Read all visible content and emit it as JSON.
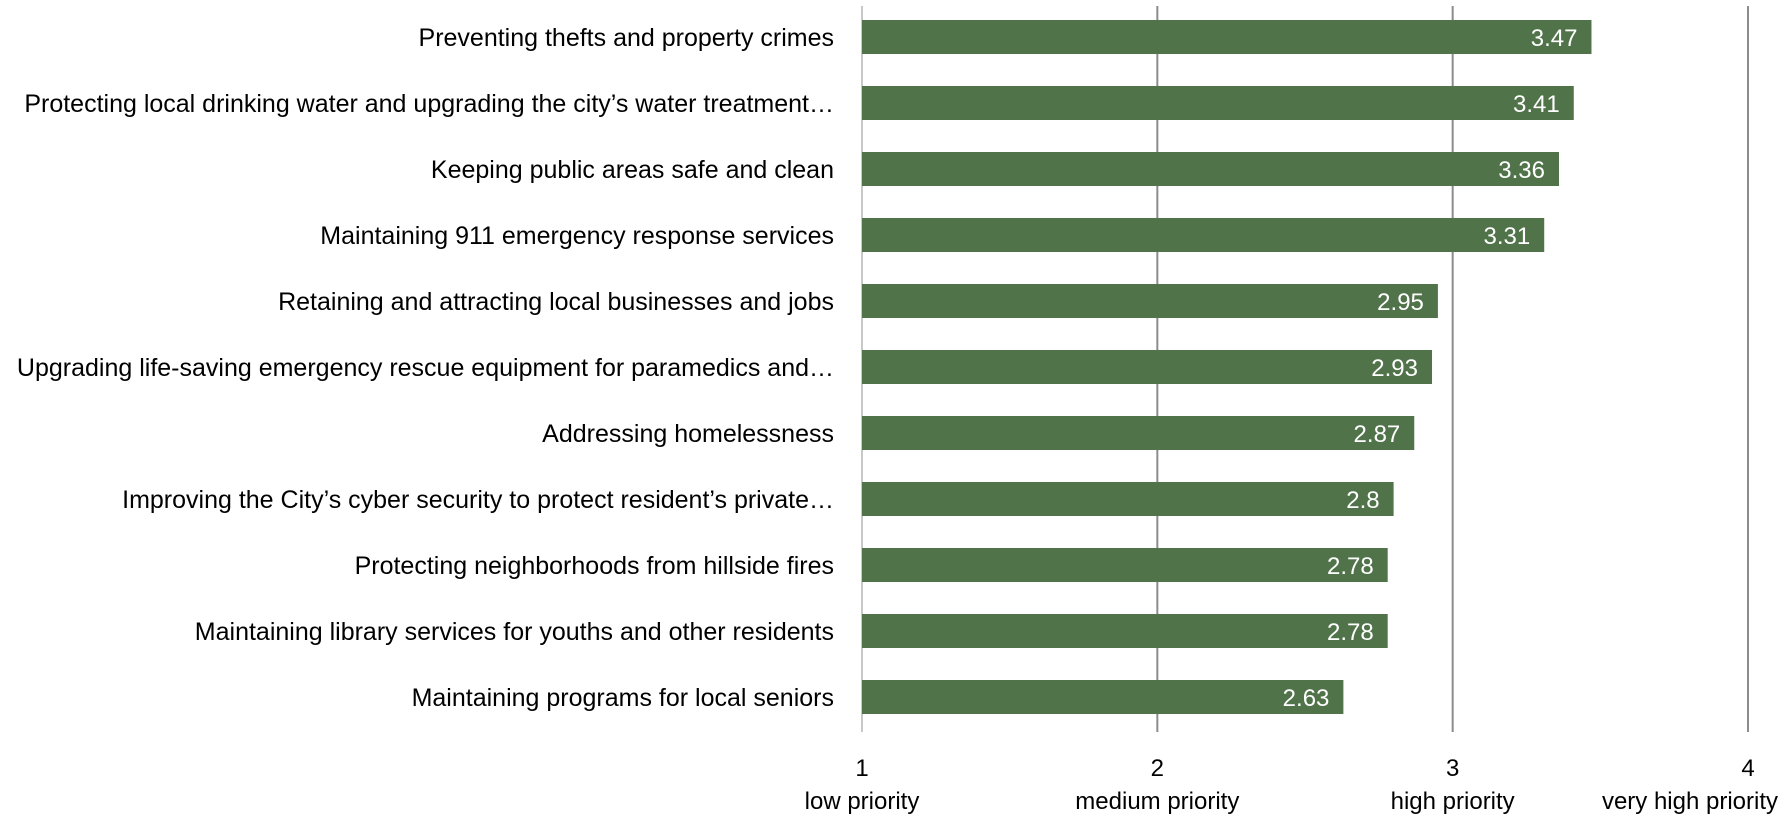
{
  "chart_data": {
    "type": "bar",
    "orientation": "horizontal",
    "categories": [
      "Preventing thefts and property crimes",
      "Protecting local drinking water and upgrading the city’s water treatment…",
      "Keeping public areas safe and clean",
      "Maintaining 911 emergency response services",
      "Retaining and attracting local businesses and jobs",
      "Upgrading life-saving emergency rescue equipment for paramedics and…",
      "Addressing homelessness",
      "Improving the City’s cyber security to protect resident’s private…",
      "Protecting neighborhoods from hillside fires",
      "Maintaining library services for youths and other residents",
      "Maintaining programs for local seniors"
    ],
    "values": [
      3.47,
      3.41,
      3.36,
      3.31,
      2.95,
      2.93,
      2.87,
      2.8,
      2.78,
      2.78,
      2.63
    ],
    "value_labels": [
      "3.47",
      "3.41",
      "3.36",
      "3.31",
      "2.95",
      "2.93",
      "2.87",
      "2.8",
      "2.78",
      "2.78",
      "2.63"
    ],
    "xlim": [
      1,
      4
    ],
    "x_ticks": [
      {
        "value": 1,
        "label": "1",
        "sublabel": "low priority"
      },
      {
        "value": 2,
        "label": "2",
        "sublabel": "medium priority"
      },
      {
        "value": 3,
        "label": "3",
        "sublabel": "high priority"
      },
      {
        "value": 4,
        "label": "4",
        "sublabel": "very high priority"
      }
    ],
    "grid": true,
    "bar_color": "#50734a",
    "grid_color": "#8c8c8c"
  }
}
